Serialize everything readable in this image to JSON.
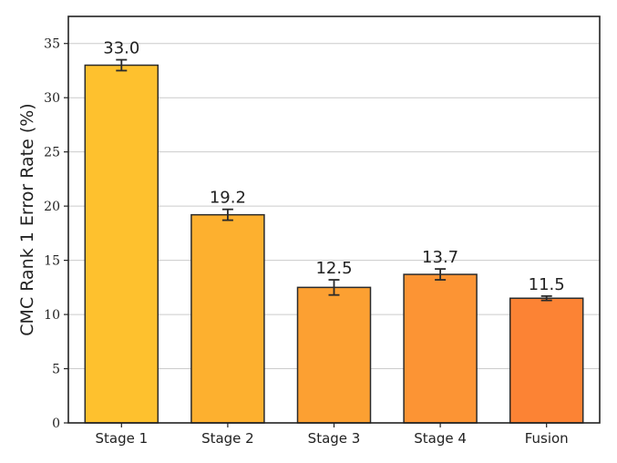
{
  "chart_data": {
    "type": "bar",
    "title": "",
    "xlabel": "",
    "ylabel": "CMC Rank 1 Error Rate (%)",
    "ylim": [
      0,
      37.5
    ],
    "yticks": [
      0,
      5,
      10,
      15,
      20,
      25,
      30,
      35
    ],
    "categories": [
      "Stage 1",
      "Stage 2",
      "Stage 3",
      "Stage 4",
      "Fusion"
    ],
    "values": [
      33.0,
      19.2,
      12.5,
      13.7,
      11.5
    ],
    "value_labels": [
      "33.0",
      "19.2",
      "12.5",
      "13.7",
      "11.5"
    ],
    "errors": [
      0.5,
      0.5,
      0.7,
      0.5,
      0.2
    ],
    "bar_colors": [
      "#FEC12E",
      "#FDB02F",
      "#FCA032",
      "#FC9434",
      "#FC8334"
    ],
    "grid": true,
    "legend": "none"
  }
}
